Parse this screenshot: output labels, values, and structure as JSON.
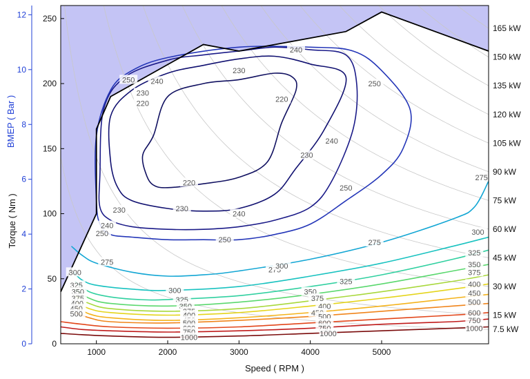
{
  "chart_data": {
    "type": "contour",
    "xlabel": "Speed ( RPM )",
    "ylabel": "Torque ( Nm )",
    "y2label": "BMEP ( Bar )",
    "xlim": [
      500,
      6500
    ],
    "ylim": [
      0,
      260
    ],
    "x_ticks": [
      1000,
      2000,
      3000,
      4000,
      5000
    ],
    "y_ticks": [
      0,
      50,
      100,
      150,
      200,
      250
    ],
    "bmep_ticks": [
      0,
      2,
      4,
      6,
      8,
      10,
      12
    ],
    "bmep_per_nm": 0.04745,
    "grid": false,
    "colors": {
      "region_fill": "#c4c4f5",
      "bmep_axis": "#1f3fd6",
      "boundary": "#000000"
    },
    "max_torque_curve": [
      [
        500,
        40
      ],
      [
        1000,
        100
      ],
      [
        1000,
        165
      ],
      [
        1200,
        190
      ],
      [
        2500,
        230
      ],
      [
        3000,
        225
      ],
      [
        4000,
        235
      ],
      [
        4500,
        240
      ],
      [
        5000,
        255
      ],
      [
        6500,
        225
      ]
    ],
    "power_lines": [
      {
        "label": "7.5 kW",
        "kw": 7.5
      },
      {
        "label": "15 kW",
        "kw": 15
      },
      {
        "label": "30 kW",
        "kw": 30
      },
      {
        "label": "45 kW",
        "kw": 45
      },
      {
        "label": "60 kW",
        "kw": 60
      },
      {
        "label": "75 kW",
        "kw": 75
      },
      {
        "label": "90 kW",
        "kw": 90
      },
      {
        "label": "105 kW",
        "kw": 105
      },
      {
        "label": "120 kW",
        "kw": 120
      },
      {
        "label": "135 kW",
        "kw": 135
      },
      {
        "label": "150 kW",
        "kw": 150
      },
      {
        "label": "165 kW",
        "kw": 165
      }
    ],
    "contours": [
      {
        "level": 220,
        "label": "220",
        "color": "#101060",
        "closed": true,
        "points": [
          [
            1800,
            160
          ],
          [
            2000,
            190
          ],
          [
            2500,
            200
          ],
          [
            3000,
            203
          ],
          [
            3500,
            208
          ],
          [
            3750,
            205
          ],
          [
            3800,
            195
          ],
          [
            3600,
            170
          ],
          [
            3400,
            140
          ],
          [
            3000,
            128
          ],
          [
            2500,
            123
          ],
          [
            2000,
            120
          ],
          [
            1800,
            122
          ],
          [
            1700,
            130
          ],
          [
            1650,
            145
          ]
        ],
        "labels": [
          [
            2300,
            124,
            "220"
          ],
          [
            3600,
            188,
            "220"
          ],
          [
            1650,
            185,
            "220"
          ]
        ]
      },
      {
        "level": 230,
        "label": "230",
        "color": "#101070",
        "closed": true,
        "points": [
          [
            1200,
            175
          ],
          [
            1500,
            195
          ],
          [
            2000,
            208
          ],
          [
            2500,
            214
          ],
          [
            3000,
            219
          ],
          [
            3500,
            221
          ],
          [
            4000,
            215
          ],
          [
            4500,
            205
          ],
          [
            4200,
            165
          ],
          [
            3800,
            135
          ],
          [
            3500,
            115
          ],
          [
            3000,
            104
          ],
          [
            2500,
            102
          ],
          [
            2000,
            104
          ],
          [
            1500,
            110
          ],
          [
            1300,
            120
          ],
          [
            1200,
            140
          ]
        ],
        "labels": [
          [
            3000,
            210,
            "230"
          ],
          [
            1650,
            193,
            "230"
          ],
          [
            1320,
            103,
            "230"
          ],
          [
            2200,
            104,
            "230"
          ],
          [
            3950,
            145,
            "230"
          ]
        ]
      },
      {
        "level": 240,
        "label": "240",
        "color": "#1a1a88",
        "closed": true,
        "points": [
          [
            1100,
            180
          ],
          [
            1400,
            205
          ],
          [
            2000,
            218
          ],
          [
            2500,
            222
          ],
          [
            3000,
            225
          ],
          [
            3500,
            228
          ],
          [
            4000,
            226
          ],
          [
            4500,
            222
          ],
          [
            4650,
            200
          ],
          [
            4600,
            165
          ],
          [
            4300,
            125
          ],
          [
            4000,
            105
          ],
          [
            3500,
            95
          ],
          [
            3000,
            90
          ],
          [
            2500,
            88
          ],
          [
            2000,
            88
          ],
          [
            1500,
            90
          ],
          [
            1200,
            95
          ],
          [
            1050,
            105
          ],
          [
            1050,
            130
          ]
        ],
        "labels": [
          [
            3800,
            226,
            "240"
          ],
          [
            1850,
            202,
            "240"
          ],
          [
            1150,
            91,
            "240"
          ],
          [
            3000,
            100,
            "240"
          ],
          [
            4300,
            156,
            "240"
          ]
        ]
      },
      {
        "level": 250,
        "label": "250",
        "color": "#2436b8",
        "closed": true,
        "points": [
          [
            1000,
            160
          ],
          [
            1200,
            195
          ],
          [
            1500,
            210
          ],
          [
            2000,
            220
          ],
          [
            3000,
            228
          ],
          [
            4000,
            228
          ],
          [
            4600,
            225
          ],
          [
            5000,
            210
          ],
          [
            5400,
            180
          ],
          [
            5300,
            150
          ],
          [
            5000,
            130
          ],
          [
            4500,
            110
          ],
          [
            4000,
            92
          ],
          [
            3500,
            84
          ],
          [
            3000,
            80
          ],
          [
            2500,
            80
          ],
          [
            2000,
            80
          ],
          [
            1500,
            82
          ],
          [
            1200,
            84
          ],
          [
            1050,
            92
          ],
          [
            1000,
            110
          ]
        ],
        "labels": [
          [
            4900,
            200,
            "250"
          ],
          [
            1450,
            203,
            "250"
          ],
          [
            1080,
            85,
            "250"
          ],
          [
            2800,
            80,
            "250"
          ],
          [
            4500,
            120,
            "250"
          ]
        ]
      },
      {
        "level": 275,
        "label": "275",
        "color": "#12a6d4",
        "closed": false,
        "points": [
          [
            650,
            75
          ],
          [
            800,
            68
          ],
          [
            1000,
            62
          ],
          [
            1500,
            55
          ],
          [
            2000,
            52
          ],
          [
            2500,
            53
          ],
          [
            3000,
            56
          ],
          [
            4000,
            65
          ],
          [
            5000,
            78
          ],
          [
            6000,
            96
          ],
          [
            6300,
            105
          ],
          [
            6500,
            125
          ]
        ],
        "labels": [
          [
            1150,
            63,
            "275"
          ],
          [
            3500,
            57,
            "275"
          ],
          [
            4900,
            78,
            "275"
          ],
          [
            6400,
            128,
            "275"
          ]
        ]
      },
      {
        "level": 300,
        "label": "300",
        "color": "#18c2c0",
        "closed": false,
        "points": [
          [
            680,
            55
          ],
          [
            800,
            49
          ],
          [
            1000,
            45
          ],
          [
            1500,
            42
          ],
          [
            2000,
            41
          ],
          [
            3000,
            44
          ],
          [
            4000,
            52
          ],
          [
            5000,
            62
          ],
          [
            6000,
            75
          ],
          [
            6500,
            82
          ]
        ],
        "labels": [
          [
            700,
            55,
            "300"
          ],
          [
            2100,
            41,
            "300"
          ],
          [
            3600,
            60,
            "300"
          ],
          [
            6350,
            86,
            "300"
          ]
        ]
      },
      {
        "level": 325,
        "label": "325",
        "color": "#30d0a0",
        "closed": false,
        "points": [
          [
            700,
            48
          ],
          [
            900,
            40
          ],
          [
            1200,
            36
          ],
          [
            1600,
            34
          ],
          [
            2000,
            34
          ],
          [
            3000,
            37
          ],
          [
            4000,
            44
          ],
          [
            5000,
            53
          ],
          [
            6000,
            65
          ],
          [
            6500,
            72
          ]
        ],
        "labels": [
          [
            720,
            45,
            "325"
          ],
          [
            2200,
            34,
            "325"
          ],
          [
            4500,
            48,
            "325"
          ],
          [
            6300,
            70,
            "325"
          ]
        ]
      },
      {
        "level": 350,
        "label": "350",
        "color": "#5ad86e",
        "closed": false,
        "points": [
          [
            700,
            42
          ],
          [
            900,
            35
          ],
          [
            1200,
            31
          ],
          [
            2000,
            29
          ],
          [
            3000,
            32
          ],
          [
            4000,
            38
          ],
          [
            5000,
            46
          ],
          [
            6000,
            56
          ],
          [
            6500,
            61
          ]
        ],
        "labels": [
          [
            740,
            40,
            "350"
          ],
          [
            2250,
            29,
            "350"
          ],
          [
            4000,
            40,
            "350"
          ],
          [
            6300,
            61,
            "350"
          ]
        ]
      },
      {
        "level": 375,
        "label": "375",
        "color": "#a8d83c",
        "closed": false,
        "points": [
          [
            700,
            37
          ],
          [
            900,
            31
          ],
          [
            1200,
            27
          ],
          [
            2000,
            25
          ],
          [
            3000,
            27
          ],
          [
            4000,
            33
          ],
          [
            5000,
            40
          ],
          [
            6000,
            48
          ],
          [
            6500,
            53
          ]
        ],
        "labels": [
          [
            740,
            35,
            "375"
          ],
          [
            2300,
            25,
            "375"
          ],
          [
            4100,
            35,
            "375"
          ],
          [
            6300,
            55,
            "375"
          ]
        ]
      },
      {
        "level": 400,
        "label": "400",
        "color": "#e4d41a",
        "closed": false,
        "points": [
          [
            700,
            33
          ],
          [
            900,
            27
          ],
          [
            1200,
            24
          ],
          [
            2000,
            22
          ],
          [
            3000,
            24
          ],
          [
            4000,
            29
          ],
          [
            5000,
            35
          ],
          [
            6000,
            42
          ],
          [
            6500,
            46
          ]
        ],
        "labels": [
          [
            730,
            31,
            "400"
          ],
          [
            2300,
            22,
            "400"
          ],
          [
            4200,
            29,
            "400"
          ],
          [
            6300,
            46,
            "400"
          ]
        ]
      },
      {
        "level": 450,
        "label": "450",
        "color": "#f4b21a",
        "closed": false,
        "points": [
          [
            700,
            29
          ],
          [
            900,
            23
          ],
          [
            1200,
            20
          ],
          [
            2000,
            18
          ],
          [
            3000,
            20
          ],
          [
            4000,
            24
          ],
          [
            5000,
            29
          ],
          [
            6000,
            35
          ],
          [
            6500,
            38
          ]
        ],
        "labels": [
          [
            720,
            27,
            "450"
          ],
          [
            2300,
            18,
            "450"
          ],
          [
            4100,
            24,
            "450"
          ],
          [
            6300,
            39,
            "450"
          ]
        ]
      },
      {
        "level": 500,
        "label": "500",
        "color": "#f0841a",
        "closed": false,
        "points": [
          [
            700,
            24
          ],
          [
            900,
            20
          ],
          [
            1200,
            17
          ],
          [
            2000,
            16
          ],
          [
            3000,
            18
          ],
          [
            4000,
            21
          ],
          [
            5000,
            25
          ],
          [
            6000,
            29
          ],
          [
            6500,
            31
          ]
        ],
        "labels": [
          [
            720,
            23,
            "500"
          ],
          [
            2300,
            16,
            "500"
          ],
          [
            4200,
            21,
            "500"
          ],
          [
            6300,
            32,
            "500"
          ]
        ]
      },
      {
        "level": 600,
        "label": "600",
        "color": "#e2461a",
        "closed": false,
        "points": [
          [
            500,
            17
          ],
          [
            800,
            15
          ],
          [
            1200,
            13
          ],
          [
            2000,
            12
          ],
          [
            3000,
            13
          ],
          [
            4000,
            16
          ],
          [
            5000,
            19
          ],
          [
            6000,
            22
          ],
          [
            6500,
            24
          ]
        ],
        "labels": [
          [
            2300,
            12,
            "600"
          ],
          [
            4200,
            16,
            "600"
          ],
          [
            6300,
            24,
            "600"
          ]
        ]
      },
      {
        "level": 750,
        "label": "750",
        "color": "#c01a1a",
        "closed": false,
        "points": [
          [
            500,
            13
          ],
          [
            800,
            11
          ],
          [
            1200,
            10
          ],
          [
            2000,
            9
          ],
          [
            3000,
            10
          ],
          [
            4000,
            12
          ],
          [
            5000,
            15
          ],
          [
            6000,
            17
          ],
          [
            6500,
            19
          ]
        ],
        "labels": [
          [
            2300,
            9,
            "750"
          ],
          [
            4200,
            12,
            "750"
          ],
          [
            6300,
            18,
            "750"
          ]
        ]
      },
      {
        "level": 1000,
        "label": "1000",
        "color": "#7a0a0a",
        "closed": false,
        "points": [
          [
            500,
            8
          ],
          [
            800,
            7
          ],
          [
            1200,
            6
          ],
          [
            2000,
            5
          ],
          [
            3000,
            6
          ],
          [
            4000,
            8
          ],
          [
            5000,
            10
          ],
          [
            6000,
            12
          ],
          [
            6500,
            13
          ]
        ],
        "labels": [
          [
            2300,
            5,
            "1000"
          ],
          [
            4250,
            8,
            "1000"
          ],
          [
            6300,
            12,
            "1000"
          ]
        ]
      }
    ]
  }
}
